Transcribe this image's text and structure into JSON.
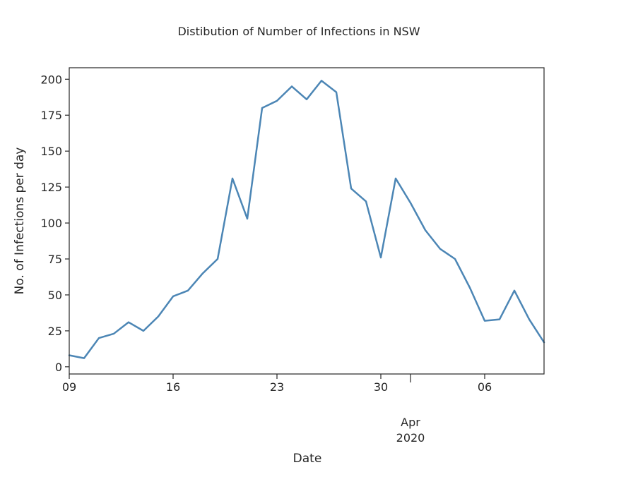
{
  "chart_data": {
    "type": "line",
    "title": "Distibution of Number of Infections in NSW",
    "xlabel": "Date",
    "ylabel": "No. of Infections per day",
    "ylim": [
      -5,
      208
    ],
    "xlim": [
      "2020-03-09",
      "2020-04-10"
    ],
    "x_ticks": [
      {
        "date": "2020-03-09",
        "label": "09"
      },
      {
        "date": "2020-03-16",
        "label": "16"
      },
      {
        "date": "2020-03-23",
        "label": "23"
      },
      {
        "date": "2020-03-30",
        "label": "30"
      },
      {
        "date": "2020-04-06",
        "label": "06"
      }
    ],
    "x_month_label": {
      "date": "2020-04-01",
      "month": "Apr",
      "year": "2020"
    },
    "y_ticks": [
      0,
      25,
      50,
      75,
      100,
      125,
      150,
      175,
      200
    ],
    "grid": false,
    "color": "#4c86b5",
    "series": [
      {
        "x": [
          "2020-03-09",
          "2020-03-10",
          "2020-03-11",
          "2020-03-12",
          "2020-03-13",
          "2020-03-14",
          "2020-03-15",
          "2020-03-16",
          "2020-03-17",
          "2020-03-18",
          "2020-03-19",
          "2020-03-20",
          "2020-03-21",
          "2020-03-22",
          "2020-03-23",
          "2020-03-24",
          "2020-03-25",
          "2020-03-26",
          "2020-03-27",
          "2020-03-28",
          "2020-03-29",
          "2020-03-30",
          "2020-03-31",
          "2020-04-01",
          "2020-04-02",
          "2020-04-03",
          "2020-04-04",
          "2020-04-05",
          "2020-04-06",
          "2020-04-07",
          "2020-04-08",
          "2020-04-09",
          "2020-04-10"
        ],
        "values": [
          8,
          6,
          20,
          23,
          31,
          25,
          35,
          49,
          53,
          65,
          75,
          131,
          103,
          180,
          185,
          195,
          186,
          199,
          191,
          124,
          115,
          76,
          131,
          114,
          95,
          82,
          75,
          55,
          32,
          33,
          53,
          33,
          17
        ]
      }
    ]
  }
}
